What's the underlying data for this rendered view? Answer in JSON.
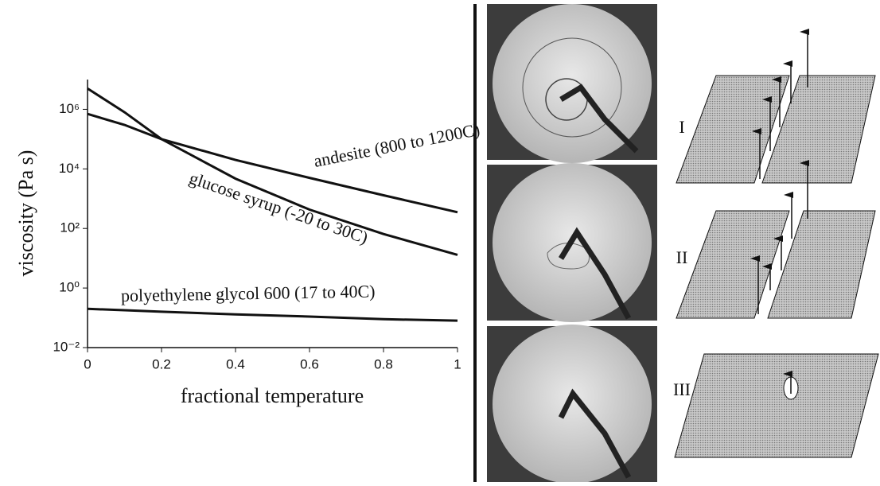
{
  "chart_data": {
    "type": "line",
    "x_label": "fractional temperature",
    "y_label": "viscosity (Pa s)",
    "x": [
      0,
      0.1,
      0.2,
      0.4,
      0.6,
      0.8,
      1
    ],
    "series": [
      {
        "name": "andesite (800 to 1200C)",
        "color": "#111111",
        "values": [
          700000,
          300000,
          100000,
          20000,
          5000,
          1300,
          350
        ]
      },
      {
        "name": "glucose syrup (-20 to 30C)",
        "color": "#111111",
        "values": [
          5000000,
          800000,
          100000,
          4700,
          430,
          65,
          13
        ]
      },
      {
        "name": "polyethylene glycol 600 (17 to 40C)",
        "color": "#111111",
        "values": [
          0.2,
          0.18,
          0.16,
          0.13,
          0.11,
          0.09,
          0.08
        ]
      }
    ],
    "xlim": [
      0,
      1
    ],
    "xticks": [
      0,
      0.2,
      0.4,
      0.6,
      0.8,
      1
    ],
    "ylim": [
      0.01,
      10000000
    ],
    "log_y": true,
    "yticks": [
      {
        "value": 0.01,
        "label": "10⁻²"
      },
      {
        "value": 1,
        "label": "10⁰"
      },
      {
        "value": 100,
        "label": "10²"
      },
      {
        "value": 10000,
        "label": "10⁴"
      },
      {
        "value": 1000000,
        "label": "10⁶"
      }
    ],
    "grid": false
  },
  "diagram": {
    "labels": [
      "I",
      "II",
      "III"
    ]
  }
}
